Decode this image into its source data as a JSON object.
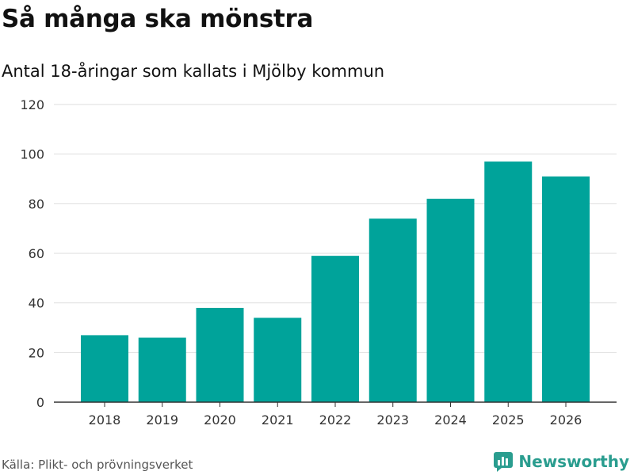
{
  "header": {
    "title": "Så många ska mönstra",
    "subtitle": "Antal 18-åringar som kallats i Mjölby kommun"
  },
  "footer": {
    "source": "Källa: Plikt- och prövningsverket",
    "brand": "Newsworthy"
  },
  "colors": {
    "bar": "#00a39a",
    "grid": "#dddddd",
    "axis": "#333333",
    "brand": "#2a9d8f"
  },
  "chart_data": {
    "type": "bar",
    "title": "Så många ska mönstra",
    "subtitle": "Antal 18-åringar som kallats i Mjölby kommun",
    "categories": [
      "2018",
      "2019",
      "2020",
      "2021",
      "2022",
      "2023",
      "2024",
      "2025",
      "2026"
    ],
    "values": [
      27,
      26,
      38,
      34,
      59,
      74,
      82,
      97,
      91
    ],
    "xlabel": "",
    "ylabel": "",
    "ylim": [
      0,
      120
    ],
    "yticks": [
      0,
      20,
      40,
      60,
      80,
      100,
      120
    ],
    "grid": true,
    "legend": "none"
  }
}
